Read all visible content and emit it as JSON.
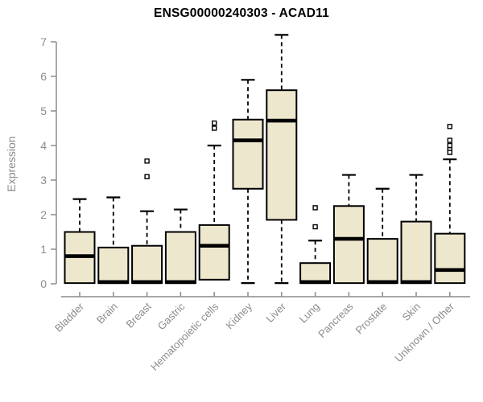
{
  "figure": {
    "title": "ENSG00000240303 - ACAD11",
    "y_axis_label": "Expression"
  },
  "style": {
    "box_fill": "#EDE7CE",
    "box_border": "#000000",
    "median_color": "#000000",
    "whisker_color": "#000000",
    "outlier_fill": "#FFFFFF",
    "outlier_border": "#000000",
    "axis_color": "#8C8C8C",
    "tick_label_color": "#8C8C8C",
    "title_color": "#000000",
    "background": "#FFFFFF"
  },
  "chart_data": {
    "type": "boxplot",
    "title": "ENSG00000240303 - ACAD11",
    "xlabel": "",
    "ylabel": "Expression",
    "ylim": [
      0,
      7.3
    ],
    "yticks": [
      0,
      1,
      2,
      3,
      4,
      5,
      6,
      7
    ],
    "grid": false,
    "legend": false,
    "categories": [
      "Bladder",
      "Brain",
      "Breast",
      "Gastric",
      "Hematopoietic cells",
      "Kidney",
      "Liver",
      "Lung",
      "Pancreas",
      "Prostate",
      "Skin",
      "Unknown / Other"
    ],
    "boxes": [
      {
        "category": "Bladder",
        "whisker_low": null,
        "q1": 0.02,
        "median": 0.8,
        "q3": 1.5,
        "whisker_high": 2.45,
        "outliers": []
      },
      {
        "category": "Brain",
        "whisker_low": null,
        "q1": 0.02,
        "median": 0.05,
        "q3": 1.05,
        "whisker_high": 2.5,
        "outliers": []
      },
      {
        "category": "Breast",
        "whisker_low": null,
        "q1": 0.02,
        "median": 0.05,
        "q3": 1.1,
        "whisker_high": 2.1,
        "outliers": [
          3.55,
          3.1
        ]
      },
      {
        "category": "Gastric",
        "whisker_low": null,
        "q1": 0.02,
        "median": 0.05,
        "q3": 1.5,
        "whisker_high": 2.15,
        "outliers": []
      },
      {
        "category": "Hematopoietic cells",
        "whisker_low": null,
        "q1": 0.12,
        "median": 1.1,
        "q3": 1.7,
        "whisker_high": 4.0,
        "outliers": [
          4.65,
          4.5
        ]
      },
      {
        "category": "Kidney",
        "whisker_low": 0.02,
        "q1": 2.75,
        "median": 4.15,
        "q3": 4.75,
        "whisker_high": 5.9,
        "outliers": []
      },
      {
        "category": "Liver",
        "whisker_low": 0.02,
        "q1": 1.85,
        "median": 4.72,
        "q3": 5.6,
        "whisker_high": 7.2,
        "outliers": []
      },
      {
        "category": "Lung",
        "whisker_low": null,
        "q1": 0.02,
        "median": 0.05,
        "q3": 0.6,
        "whisker_high": 1.25,
        "outliers": [
          2.2,
          1.65
        ]
      },
      {
        "category": "Pancreas",
        "whisker_low": null,
        "q1": 0.02,
        "median": 1.3,
        "q3": 2.25,
        "whisker_high": 3.15,
        "outliers": []
      },
      {
        "category": "Prostate",
        "whisker_low": null,
        "q1": 0.02,
        "median": 0.05,
        "q3": 1.3,
        "whisker_high": 2.75,
        "outliers": []
      },
      {
        "category": "Skin",
        "whisker_low": null,
        "q1": 0.02,
        "median": 0.05,
        "q3": 1.8,
        "whisker_high": 3.15,
        "outliers": []
      },
      {
        "category": "Unknown / Other",
        "whisker_low": null,
        "q1": 0.02,
        "median": 0.4,
        "q3": 1.45,
        "whisker_high": 3.6,
        "outliers": [
          4.55,
          4.15,
          4.0,
          3.88,
          3.8
        ]
      }
    ]
  }
}
